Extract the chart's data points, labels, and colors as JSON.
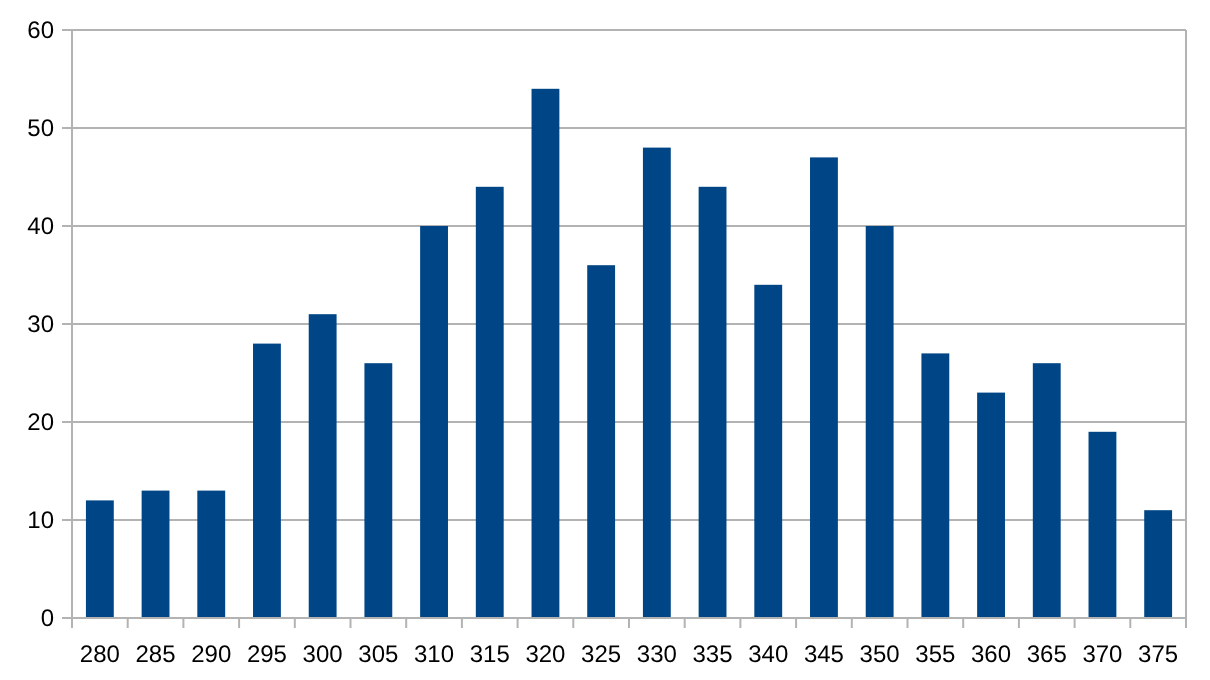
{
  "chart_data": {
    "type": "bar",
    "categories": [
      "280",
      "285",
      "290",
      "295",
      "300",
      "305",
      "310",
      "315",
      "320",
      "325",
      "330",
      "335",
      "340",
      "345",
      "350",
      "355",
      "360",
      "365",
      "370",
      "375"
    ],
    "values": [
      12,
      13,
      13,
      28,
      31,
      26,
      40,
      44,
      54,
      36,
      48,
      44,
      34,
      47,
      40,
      27,
      23,
      26,
      19,
      11
    ],
    "color": "#004586",
    "ylim": [
      0,
      60
    ],
    "yticks": [
      0,
      10,
      20,
      30,
      40,
      50,
      60
    ],
    "grid": "y"
  }
}
